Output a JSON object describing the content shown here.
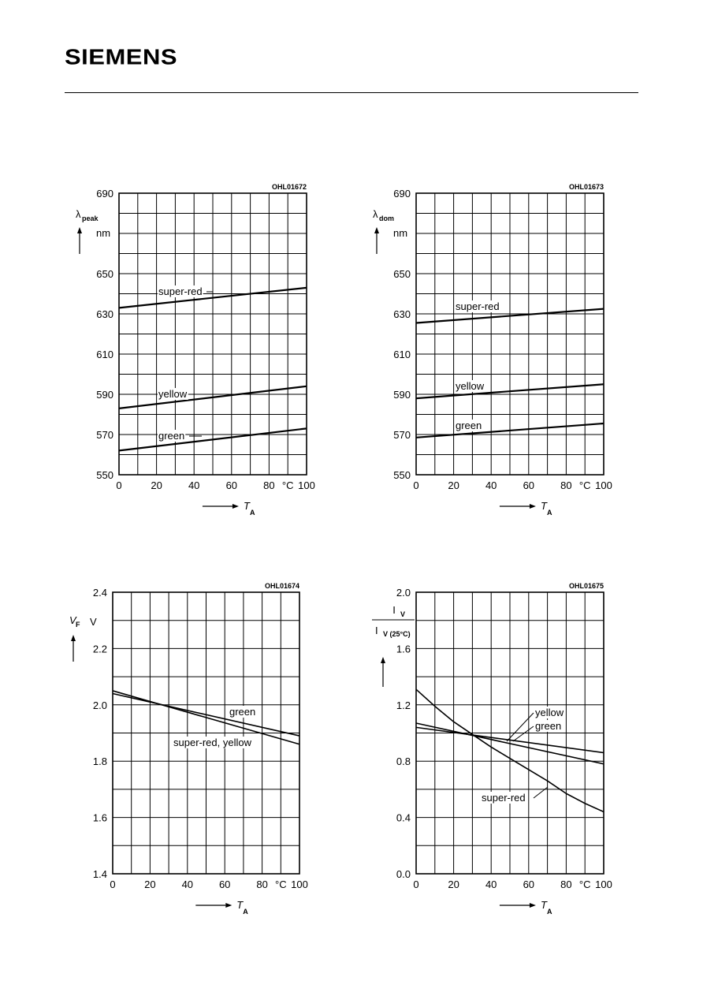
{
  "header": {
    "logo_text": "SIEMENS"
  },
  "chart_data": [
    {
      "type": "line",
      "figure_code": "OHL01672",
      "ylabel": {
        "sym": "λ",
        "sub": "peak",
        "unit": "nm"
      },
      "xlabel": {
        "sym": "T",
        "sub": "A",
        "unit": "°C"
      },
      "xlim": [
        0,
        100
      ],
      "ylim": [
        550,
        690
      ],
      "x_ticks": [
        "0",
        "20",
        "40",
        "60",
        "80",
        "100"
      ],
      "y_ticks": [
        "550",
        "570",
        "590",
        "610",
        "630",
        "650",
        "690"
      ],
      "grid": true,
      "series": [
        {
          "name": "super-red",
          "x": [
            0,
            100
          ],
          "y": [
            633,
            643
          ]
        },
        {
          "name": "yellow",
          "x": [
            0,
            100
          ],
          "y": [
            583,
            594
          ]
        },
        {
          "name": "green",
          "x": [
            0,
            100
          ],
          "y": [
            562,
            573
          ]
        }
      ]
    },
    {
      "type": "line",
      "figure_code": "OHL01673",
      "ylabel": {
        "sym": "λ",
        "sub": "dom",
        "unit": "nm"
      },
      "xlabel": {
        "sym": "T",
        "sub": "A",
        "unit": "°C"
      },
      "xlim": [
        0,
        100
      ],
      "ylim": [
        550,
        690
      ],
      "x_ticks": [
        "0",
        "20",
        "40",
        "60",
        "80",
        "100"
      ],
      "y_ticks": [
        "550",
        "570",
        "590",
        "610",
        "630",
        "650",
        "690"
      ],
      "grid": true,
      "series": [
        {
          "name": "super-red",
          "x": [
            0,
            100
          ],
          "y": [
            625.5,
            632.5
          ]
        },
        {
          "name": "yellow",
          "x": [
            0,
            100
          ],
          "y": [
            588,
            595
          ]
        },
        {
          "name": "green",
          "x": [
            0,
            100
          ],
          "y": [
            568.5,
            575.5
          ]
        }
      ]
    },
    {
      "type": "line",
      "figure_code": "OHL01674",
      "ylabel": {
        "sym": "V",
        "sub": "F",
        "unit": "V"
      },
      "xlabel": {
        "sym": "T",
        "sub": "A",
        "unit": "°C"
      },
      "xlim": [
        0,
        100
      ],
      "ylim": [
        1.4,
        2.4
      ],
      "x_ticks": [
        "0",
        "20",
        "40",
        "60",
        "80",
        "100"
      ],
      "y_ticks": [
        "1.4",
        "1.6",
        "1.8",
        "2.0",
        "2.2",
        "2.4"
      ],
      "grid": true,
      "annotations": [
        "green",
        "super-red, yellow"
      ],
      "series": [
        {
          "name": "green",
          "x": [
            0,
            100
          ],
          "y": [
            2.04,
            1.89
          ]
        },
        {
          "name": "super-red, yellow",
          "x": [
            0,
            100
          ],
          "y": [
            2.05,
            1.86
          ]
        }
      ]
    },
    {
      "type": "line",
      "figure_code": "OHL01675",
      "ylabel": {
        "sym": "I",
        "sub": "V",
        "den_sym": "I",
        "den_sub": "V (25°C)"
      },
      "xlabel": {
        "sym": "T",
        "sub": "A",
        "unit": "°C"
      },
      "xlim": [
        0,
        100
      ],
      "ylim": [
        0.0,
        2.0
      ],
      "x_ticks": [
        "0",
        "20",
        "40",
        "60",
        "80",
        "100"
      ],
      "y_ticks": [
        "0.0",
        "0.4",
        "0.8",
        "1.2",
        "1.6",
        "2.0"
      ],
      "grid": true,
      "series": [
        {
          "name": "yellow",
          "x": [
            0,
            100
          ],
          "y": [
            1.07,
            0.78
          ]
        },
        {
          "name": "green",
          "x": [
            0,
            100
          ],
          "y": [
            1.04,
            0.86
          ]
        },
        {
          "name": "super-red",
          "x": [
            0,
            10,
            20,
            30,
            40,
            50,
            60,
            70,
            80,
            90,
            100
          ],
          "y": [
            1.31,
            1.19,
            1.08,
            0.99,
            0.9,
            0.82,
            0.74,
            0.66,
            0.57,
            0.5,
            0.44
          ]
        }
      ]
    }
  ]
}
